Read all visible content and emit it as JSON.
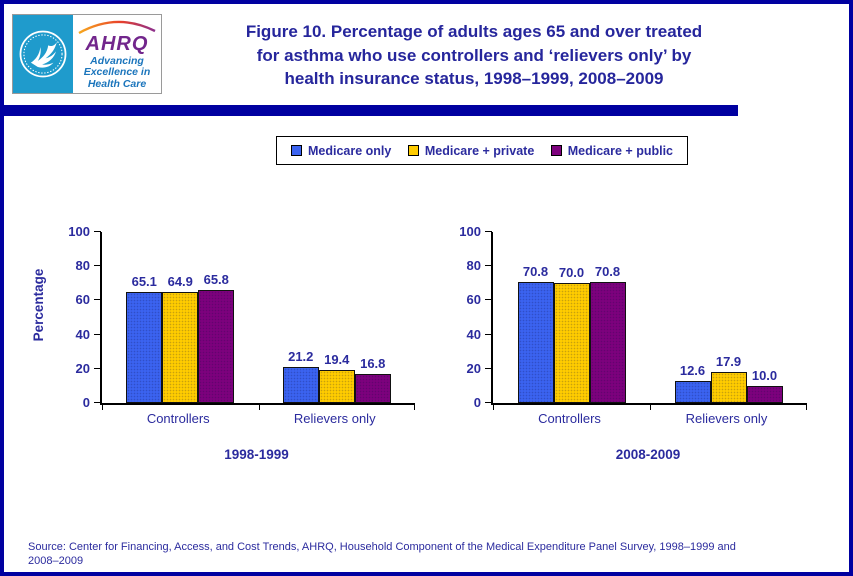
{
  "header": {
    "title_lines": [
      "Figure 10. Percentage of adults ages 65 and over treated",
      "for asthma who use controllers and ‘relievers only’ by",
      "health insurance status, 1998–1999, 2008–2009"
    ],
    "logo": {
      "org_abbrev": "AHRQ",
      "tagline_lines": [
        "Advancing",
        "Excellence in",
        "Health Care"
      ]
    }
  },
  "legend": {
    "position": "top-center",
    "items": [
      {
        "label": "Medicare only",
        "color": "#3B63F0"
      },
      {
        "label": "Medicare + private",
        "color": "#FFCC00"
      },
      {
        "label": "Medicare + public",
        "color": "#7D017D"
      }
    ]
  },
  "chart_data": [
    {
      "type": "bar",
      "title": "1998-1999",
      "categories": [
        "Controllers",
        "Relievers only"
      ],
      "series": [
        {
          "name": "Medicare only",
          "color": "#3B63F0",
          "values": [
            65.1,
            21.2
          ]
        },
        {
          "name": "Medicare + private",
          "color": "#FFCC00",
          "values": [
            64.9,
            19.4
          ]
        },
        {
          "name": "Medicare + public",
          "color": "#7D017D",
          "values": [
            65.8,
            16.8
          ]
        }
      ],
      "xlabel": "",
      "ylabel": "Percentage",
      "ylim": [
        0,
        100
      ],
      "yticks": [
        0,
        20,
        40,
        60,
        80,
        100
      ],
      "grid": false,
      "value_labels": true
    },
    {
      "type": "bar",
      "title": "2008-2009",
      "categories": [
        "Controllers",
        "Relievers only"
      ],
      "series": [
        {
          "name": "Medicare only",
          "color": "#3B63F0",
          "values": [
            70.8,
            12.6
          ]
        },
        {
          "name": "Medicare + private",
          "color": "#FFCC00",
          "values": [
            70.0,
            17.9
          ]
        },
        {
          "name": "Medicare + public",
          "color": "#7D017D",
          "values": [
            70.8,
            10.0
          ]
        }
      ],
      "xlabel": "",
      "ylabel": "",
      "ylim": [
        0,
        100
      ],
      "yticks": [
        0,
        20,
        40,
        60,
        80,
        100
      ],
      "grid": false,
      "value_labels": true
    }
  ],
  "source": {
    "line1": "Source: Center for Financing, Access, and Cost Trends, AHRQ, Household Component of the Medical Expenditure Panel Survey,  1998–1999 and",
    "line2": "2008–2009"
  },
  "colors": {
    "accent_navy": "#0000A0",
    "text_navy": "#2B2B9E",
    "axis_black": "#000000",
    "seal_teal": "#1F9BCC",
    "ahrq_purple": "#72268C",
    "tagline_blue": "#1B75BC"
  }
}
